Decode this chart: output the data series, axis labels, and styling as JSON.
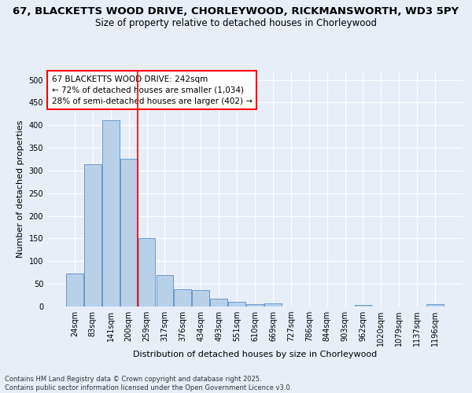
{
  "title_line1": "67, BLACKETTS WOOD DRIVE, CHORLEYWOOD, RICKMANSWORTH, WD3 5PY",
  "title_line2": "Size of property relative to detached houses in Chorleywood",
  "xlabel": "Distribution of detached houses by size in Chorleywood",
  "ylabel": "Number of detached properties",
  "categories": [
    "24sqm",
    "83sqm",
    "141sqm",
    "200sqm",
    "259sqm",
    "317sqm",
    "376sqm",
    "434sqm",
    "493sqm",
    "551sqm",
    "610sqm",
    "669sqm",
    "727sqm",
    "786sqm",
    "844sqm",
    "903sqm",
    "962sqm",
    "1020sqm",
    "1079sqm",
    "1137sqm",
    "1196sqm"
  ],
  "values": [
    72,
    314,
    410,
    325,
    150,
    70,
    38,
    36,
    18,
    11,
    6,
    7,
    0,
    0,
    0,
    0,
    3,
    0,
    0,
    0,
    5
  ],
  "bar_color": "#b8d0e8",
  "bar_edge_color": "#6699cc",
  "background_color": "#e8eef8",
  "grid_color": "#ffffff",
  "vline_x_index": 3.5,
  "vline_color": "red",
  "annotation_text": "67 BLACKETTS WOOD DRIVE: 242sqm\n← 72% of detached houses are smaller (1,034)\n28% of semi-detached houses are larger (402) →",
  "annotation_box_color": "white",
  "annotation_box_edge_color": "red",
  "ylim": [
    0,
    520
  ],
  "yticks": [
    0,
    50,
    100,
    150,
    200,
    250,
    300,
    350,
    400,
    450,
    500
  ],
  "footnote": "Contains HM Land Registry data © Crown copyright and database right 2025.\nContains public sector information licensed under the Open Government Licence v3.0.",
  "title_fontsize": 9.5,
  "subtitle_fontsize": 8.5,
  "tick_fontsize": 7,
  "ylabel_fontsize": 8,
  "xlabel_fontsize": 8,
  "annotation_fontsize": 7.5,
  "footnote_fontsize": 6
}
